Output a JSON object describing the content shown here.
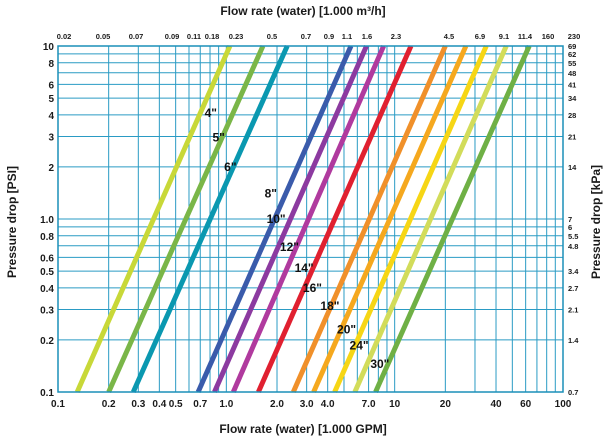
{
  "chart_data": {
    "type": "line",
    "title": "",
    "xlabel_bottom": "Flow rate (water) [1.000 GPM]",
    "xlabel_top": "Flow rate (water) [1.000 m³/h]",
    "ylabel_left": "Pressure drop [PSI]",
    "ylabel_right": "Pressure drop [kPa]",
    "x_scale": "log",
    "y_scale": "log",
    "xlim": [
      0.1,
      100
    ],
    "ylim": [
      0.1,
      10
    ],
    "grid": true,
    "bottom_ticks": [
      {
        "v": 0.1,
        "label": "0.1"
      },
      {
        "v": 0.2,
        "label": "0.2"
      },
      {
        "v": 0.3,
        "label": "0.3"
      },
      {
        "v": 0.4,
        "label": "0.4"
      },
      {
        "v": 0.5,
        "label": "0.5"
      },
      {
        "v": 0.7,
        "label": "0.7"
      },
      {
        "v": 1.0,
        "label": "1.0"
      },
      {
        "v": 2.0,
        "label": "2.0"
      },
      {
        "v": 3.0,
        "label": "3.0"
      },
      {
        "v": 4.0,
        "label": "4.0"
      },
      {
        "v": 7.0,
        "label": "7.0"
      },
      {
        "v": 10,
        "label": "10"
      },
      {
        "v": 20,
        "label": "20"
      },
      {
        "v": 40,
        "label": "40"
      },
      {
        "v": 60,
        "label": "60"
      },
      {
        "v": 100,
        "label": "100"
      }
    ],
    "top_ticks": [
      "0.02",
      "0.05",
      "0.07",
      "0.09",
      "0.11",
      "0.18",
      "0.23",
      "0.5",
      "0.7",
      "0.9",
      "1.1",
      "1.6",
      "2.3",
      "4.5",
      "6.9",
      "9.1",
      "11.4",
      "160",
      "230"
    ],
    "left_ticks": [
      {
        "v": 0.1,
        "label": "0.1"
      },
      {
        "v": 0.2,
        "label": "0.2"
      },
      {
        "v": 0.3,
        "label": "0.3"
      },
      {
        "v": 0.4,
        "label": "0.4"
      },
      {
        "v": 0.5,
        "label": "0.5"
      },
      {
        "v": 0.6,
        "label": "0.6"
      },
      {
        "v": 0.8,
        "label": "0.8"
      },
      {
        "v": 1.0,
        "label": "1.0"
      },
      {
        "v": 2,
        "label": "2"
      },
      {
        "v": 3,
        "label": "3"
      },
      {
        "v": 4,
        "label": "4"
      },
      {
        "v": 5,
        "label": "5"
      },
      {
        "v": 6,
        "label": "6"
      },
      {
        "v": 8,
        "label": "8"
      },
      {
        "v": 10,
        "label": "10"
      }
    ],
    "right_ticks": [
      {
        "v": 0.1,
        "label": "0.7"
      },
      {
        "v": 0.2,
        "label": "1.4"
      },
      {
        "v": 0.3,
        "label": "2.1"
      },
      {
        "v": 0.4,
        "label": "2.7"
      },
      {
        "v": 0.5,
        "label": "3.4"
      },
      {
        "v": 0.7,
        "label": "4.8"
      },
      {
        "v": 0.8,
        "label": "5.5"
      },
      {
        "v": 0.9,
        "label": "6"
      },
      {
        "v": 1.0,
        "label": "7"
      },
      {
        "v": 2,
        "label": "14"
      },
      {
        "v": 3,
        "label": "21"
      },
      {
        "v": 4,
        "label": "28"
      },
      {
        "v": 5,
        "label": "34"
      },
      {
        "v": 6,
        "label": "41"
      },
      {
        "v": 7,
        "label": "48"
      },
      {
        "v": 8,
        "label": "55"
      },
      {
        "v": 9,
        "label": "62"
      },
      {
        "v": 10,
        "label": "69"
      }
    ],
    "series": [
      {
        "name": "4\"",
        "color": "#c8d838",
        "x": [
          0.13,
          1.05
        ],
        "y": [
          0.1,
          10
        ],
        "label_at": [
          0.88,
          4.1
        ]
      },
      {
        "name": "5\"",
        "color": "#7ab648",
        "x": [
          0.2,
          1.65
        ],
        "y": [
          0.1,
          10
        ],
        "label_at": [
          0.98,
          2.95
        ]
      },
      {
        "name": "6\"",
        "color": "#0a98b0",
        "x": [
          0.28,
          2.3
        ],
        "y": [
          0.1,
          10
        ],
        "label_at": [
          1.15,
          2.0
        ]
      },
      {
        "name": "8\"",
        "color": "#3a5bab",
        "x": [
          0.68,
          5.5
        ],
        "y": [
          0.1,
          10
        ],
        "label_at": [
          2.0,
          1.4
        ]
      },
      {
        "name": "10\"",
        "color": "#8c3aa0",
        "x": [
          0.85,
          6.8
        ],
        "y": [
          0.1,
          10
        ],
        "label_at": [
          2.25,
          1.0
        ]
      },
      {
        "name": "12\"",
        "color": "#b03a9e",
        "x": [
          1.1,
          8.6
        ],
        "y": [
          0.1,
          10
        ],
        "label_at": [
          2.7,
          0.69
        ]
      },
      {
        "name": "14\"",
        "color": "#e02030",
        "x": [
          1.55,
          12.5
        ],
        "y": [
          0.1,
          10
        ],
        "label_at": [
          3.3,
          0.52
        ]
      },
      {
        "name": "16\"",
        "color": "#f0902a",
        "x": [
          2.5,
          20.0
        ],
        "y": [
          0.1,
          10
        ],
        "label_at": [
          3.7,
          0.4
        ]
      },
      {
        "name": "18\"",
        "color": "#f5a81e",
        "x": [
          3.3,
          26.5
        ],
        "y": [
          0.1,
          10
        ],
        "label_at": [
          4.7,
          0.315
        ]
      },
      {
        "name": "20\"",
        "color": "#f6d615",
        "x": [
          4.4,
          35.0
        ],
        "y": [
          0.1,
          10
        ],
        "label_at": [
          5.9,
          0.23
        ]
      },
      {
        "name": "24\"",
        "color": "#d2dc5a",
        "x": [
          5.8,
          46.0
        ],
        "y": [
          0.1,
          10
        ],
        "label_at": [
          7.0,
          0.186
        ]
      },
      {
        "name": "30\"",
        "color": "#6fb045",
        "x": [
          7.7,
          63.0
        ],
        "y": [
          0.1,
          10
        ],
        "label_at": [
          9.3,
          0.145
        ]
      }
    ]
  }
}
